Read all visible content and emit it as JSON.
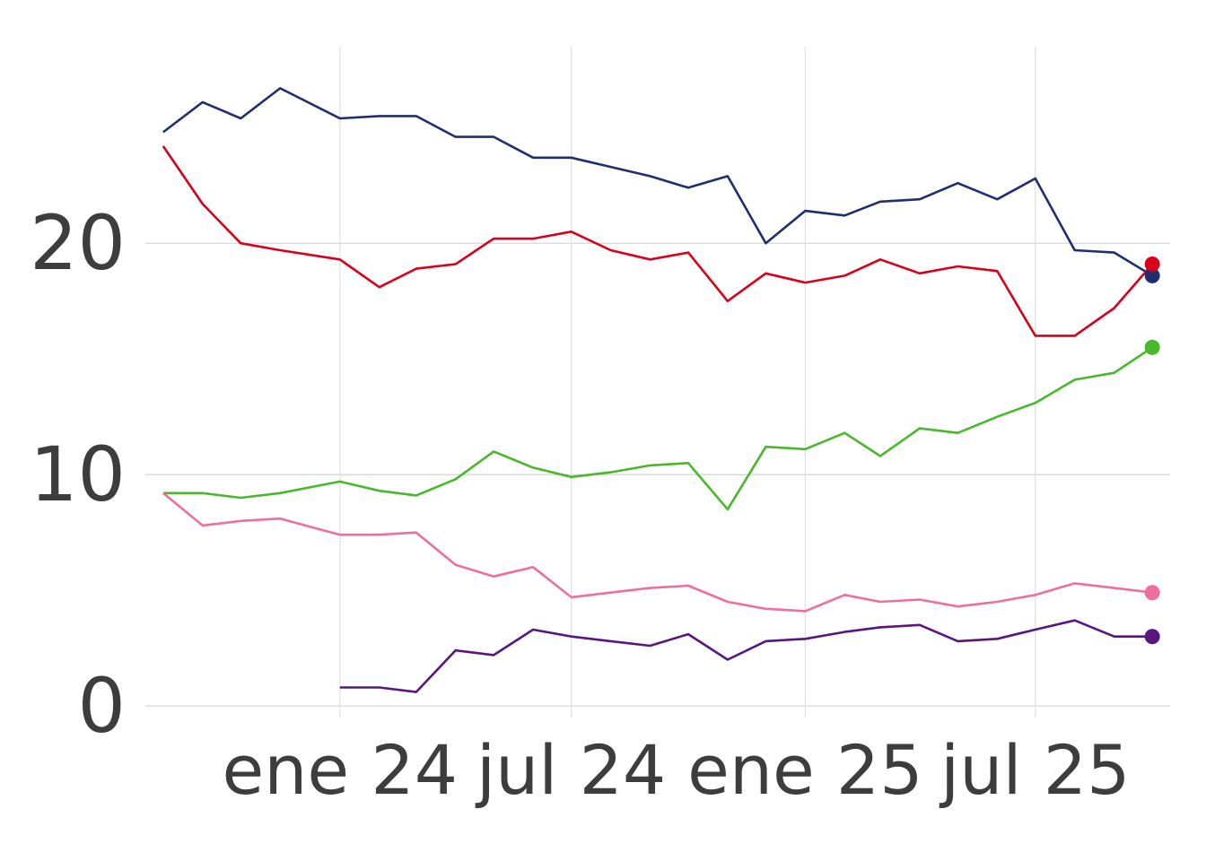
{
  "chart_data": {
    "type": "line",
    "title": "",
    "xlabel": "",
    "ylabel": "",
    "x_axis": {
      "type": "date",
      "range": [
        "2023-08-01",
        "2025-10-15"
      ],
      "ticks": [
        {
          "value": "2024-01-01",
          "label": "ene 24"
        },
        {
          "value": "2024-07-01",
          "label": "jul 24"
        },
        {
          "value": "2025-01-01",
          "label": "ene 25"
        },
        {
          "value": "2025-07-01",
          "label": "jul 25"
        }
      ]
    },
    "y_axis": {
      "range": [
        -0.5,
        28.5
      ],
      "ticks": [
        0,
        10,
        20
      ]
    },
    "grid": true,
    "legend": "none",
    "end_markers": true,
    "series": [
      {
        "color": "#1f2f6e",
        "points": [
          [
            "2023-08-15",
            24.8
          ],
          [
            "2023-09-15",
            26.1
          ],
          [
            "2023-10-15",
            25.4
          ],
          [
            "2023-11-15",
            26.7
          ],
          [
            "2024-01-01",
            25.4
          ],
          [
            "2024-02-01",
            25.5
          ],
          [
            "2024-03-01",
            25.5
          ],
          [
            "2024-04-01",
            24.6
          ],
          [
            "2024-05-01",
            24.6
          ],
          [
            "2024-06-01",
            23.7
          ],
          [
            "2024-07-01",
            23.7
          ],
          [
            "2024-08-01",
            23.3
          ],
          [
            "2024-09-01",
            22.9
          ],
          [
            "2024-10-01",
            22.4
          ],
          [
            "2024-11-01",
            22.9
          ],
          [
            "2024-12-01",
            20.0
          ],
          [
            "2025-01-01",
            21.4
          ],
          [
            "2025-02-01",
            21.2
          ],
          [
            "2025-03-01",
            21.8
          ],
          [
            "2025-04-01",
            21.9
          ],
          [
            "2025-05-01",
            22.6
          ],
          [
            "2025-06-01",
            21.9
          ],
          [
            "2025-07-01",
            22.8
          ],
          [
            "2025-08-01",
            19.7
          ],
          [
            "2025-09-01",
            19.6
          ],
          [
            "2025-10-01",
            18.6
          ]
        ]
      },
      {
        "color": "#d9001b",
        "points": [
          [
            "2023-08-15",
            24.2
          ],
          [
            "2023-09-15",
            21.7
          ],
          [
            "2023-10-15",
            20.0
          ],
          [
            "2023-11-15",
            19.7
          ],
          [
            "2024-01-01",
            19.3
          ],
          [
            "2024-02-01",
            18.1
          ],
          [
            "2024-03-01",
            18.9
          ],
          [
            "2024-04-01",
            19.1
          ],
          [
            "2024-05-01",
            20.2
          ],
          [
            "2024-06-01",
            20.2
          ],
          [
            "2024-07-01",
            20.5
          ],
          [
            "2024-08-01",
            19.7
          ],
          [
            "2024-09-01",
            19.3
          ],
          [
            "2024-10-01",
            19.6
          ],
          [
            "2024-11-01",
            17.5
          ],
          [
            "2024-12-01",
            18.7
          ],
          [
            "2025-01-01",
            18.3
          ],
          [
            "2025-02-01",
            18.6
          ],
          [
            "2025-03-01",
            19.3
          ],
          [
            "2025-04-01",
            18.7
          ],
          [
            "2025-05-01",
            19.0
          ],
          [
            "2025-06-01",
            18.8
          ],
          [
            "2025-07-01",
            16.0
          ],
          [
            "2025-08-01",
            16.0
          ],
          [
            "2025-09-01",
            17.2
          ],
          [
            "2025-10-01",
            19.1
          ]
        ]
      },
      {
        "color": "#49b82b",
        "points": [
          [
            "2023-08-15",
            9.2
          ],
          [
            "2023-09-15",
            9.2
          ],
          [
            "2023-10-15",
            9.0
          ],
          [
            "2023-11-15",
            9.2
          ],
          [
            "2024-01-01",
            9.7
          ],
          [
            "2024-02-01",
            9.3
          ],
          [
            "2024-03-01",
            9.1
          ],
          [
            "2024-04-01",
            9.8
          ],
          [
            "2024-05-01",
            11.0
          ],
          [
            "2024-06-01",
            10.3
          ],
          [
            "2024-07-01",
            9.9
          ],
          [
            "2024-08-01",
            10.1
          ],
          [
            "2024-09-01",
            10.4
          ],
          [
            "2024-10-01",
            10.5
          ],
          [
            "2024-11-01",
            8.5
          ],
          [
            "2024-12-01",
            11.2
          ],
          [
            "2025-01-01",
            11.1
          ],
          [
            "2025-02-01",
            11.8
          ],
          [
            "2025-03-01",
            10.8
          ],
          [
            "2025-04-01",
            12.0
          ],
          [
            "2025-05-01",
            11.8
          ],
          [
            "2025-06-01",
            12.5
          ],
          [
            "2025-07-01",
            13.1
          ],
          [
            "2025-08-01",
            14.1
          ],
          [
            "2025-09-01",
            14.4
          ],
          [
            "2025-10-01",
            15.5
          ]
        ]
      },
      {
        "color": "#ef6ea0",
        "points": [
          [
            "2023-08-15",
            9.2
          ],
          [
            "2023-09-15",
            7.8
          ],
          [
            "2023-10-15",
            8.0
          ],
          [
            "2023-11-15",
            8.1
          ],
          [
            "2024-01-01",
            7.4
          ],
          [
            "2024-02-01",
            7.4
          ],
          [
            "2024-03-01",
            7.5
          ],
          [
            "2024-04-01",
            6.1
          ],
          [
            "2024-05-01",
            5.6
          ],
          [
            "2024-06-01",
            6.0
          ],
          [
            "2024-07-01",
            4.7
          ],
          [
            "2024-08-01",
            4.9
          ],
          [
            "2024-09-01",
            5.1
          ],
          [
            "2024-10-01",
            5.2
          ],
          [
            "2024-11-01",
            4.5
          ],
          [
            "2024-12-01",
            4.2
          ],
          [
            "2025-01-01",
            4.1
          ],
          [
            "2025-02-01",
            4.8
          ],
          [
            "2025-03-01",
            4.5
          ],
          [
            "2025-04-01",
            4.6
          ],
          [
            "2025-05-01",
            4.3
          ],
          [
            "2025-06-01",
            4.5
          ],
          [
            "2025-07-01",
            4.8
          ],
          [
            "2025-08-01",
            5.3
          ],
          [
            "2025-09-01",
            5.1
          ],
          [
            "2025-10-01",
            4.9
          ]
        ]
      },
      {
        "color": "#57177f",
        "points": [
          [
            "2024-01-01",
            0.8
          ],
          [
            "2024-02-01",
            0.8
          ],
          [
            "2024-03-01",
            0.6
          ],
          [
            "2024-04-01",
            2.4
          ],
          [
            "2024-05-01",
            2.2
          ],
          [
            "2024-06-01",
            3.3
          ],
          [
            "2024-07-01",
            3.0
          ],
          [
            "2024-08-01",
            2.8
          ],
          [
            "2024-09-01",
            2.6
          ],
          [
            "2024-10-01",
            3.1
          ],
          [
            "2024-11-01",
            2.0
          ],
          [
            "2024-12-01",
            2.8
          ],
          [
            "2025-01-01",
            2.9
          ],
          [
            "2025-02-01",
            3.2
          ],
          [
            "2025-03-01",
            3.4
          ],
          [
            "2025-04-01",
            3.5
          ],
          [
            "2025-05-01",
            2.8
          ],
          [
            "2025-06-01",
            2.9
          ],
          [
            "2025-07-01",
            3.3
          ],
          [
            "2025-08-01",
            3.7
          ],
          [
            "2025-09-01",
            3.0
          ],
          [
            "2025-10-01",
            3.0
          ]
        ]
      }
    ]
  }
}
